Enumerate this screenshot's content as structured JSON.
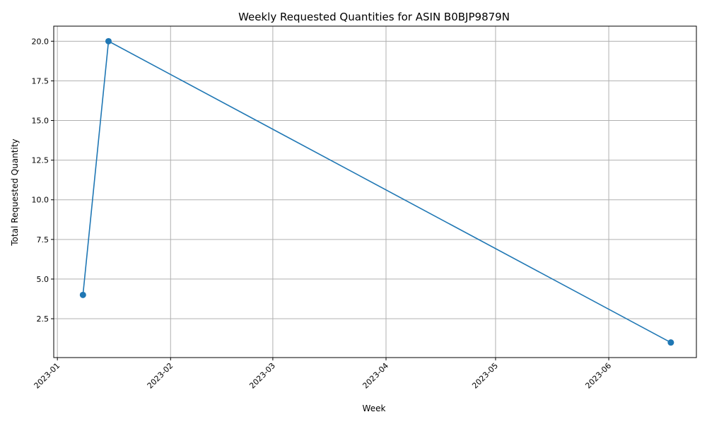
{
  "chart_data": {
    "type": "line",
    "title": "Weekly Requested Quantities for ASIN B0BJP9879N",
    "xlabel": "Week",
    "ylabel": "Total Requested Quantity",
    "x_type": "date",
    "xlim": [
      "2022-12-31",
      "2023-06-25"
    ],
    "ylim": [
      0.05,
      20.95
    ],
    "x_ticks": [
      "2023-01",
      "2023-02",
      "2023-03",
      "2023-04",
      "2023-05",
      "2023-06"
    ],
    "x_tick_dates": [
      "2023-01-01",
      "2023-02-01",
      "2023-03-01",
      "2023-04-01",
      "2023-05-01",
      "2023-06-01"
    ],
    "y_ticks": [
      2.5,
      5.0,
      7.5,
      10.0,
      12.5,
      15.0,
      17.5,
      20.0
    ],
    "y_tick_labels": [
      "2.5",
      "5.0",
      "7.5",
      "10.0",
      "12.5",
      "15.0",
      "17.5",
      "20.0"
    ],
    "grid": true,
    "x_tick_rotation_deg": 45,
    "series": [
      {
        "color": "#1f77b4",
        "marker": "circle",
        "points": [
          {
            "x": "2023-01-08",
            "y": 4
          },
          {
            "x": "2023-01-15",
            "y": 20
          },
          {
            "x": "2023-06-18",
            "y": 1
          }
        ]
      }
    ]
  }
}
